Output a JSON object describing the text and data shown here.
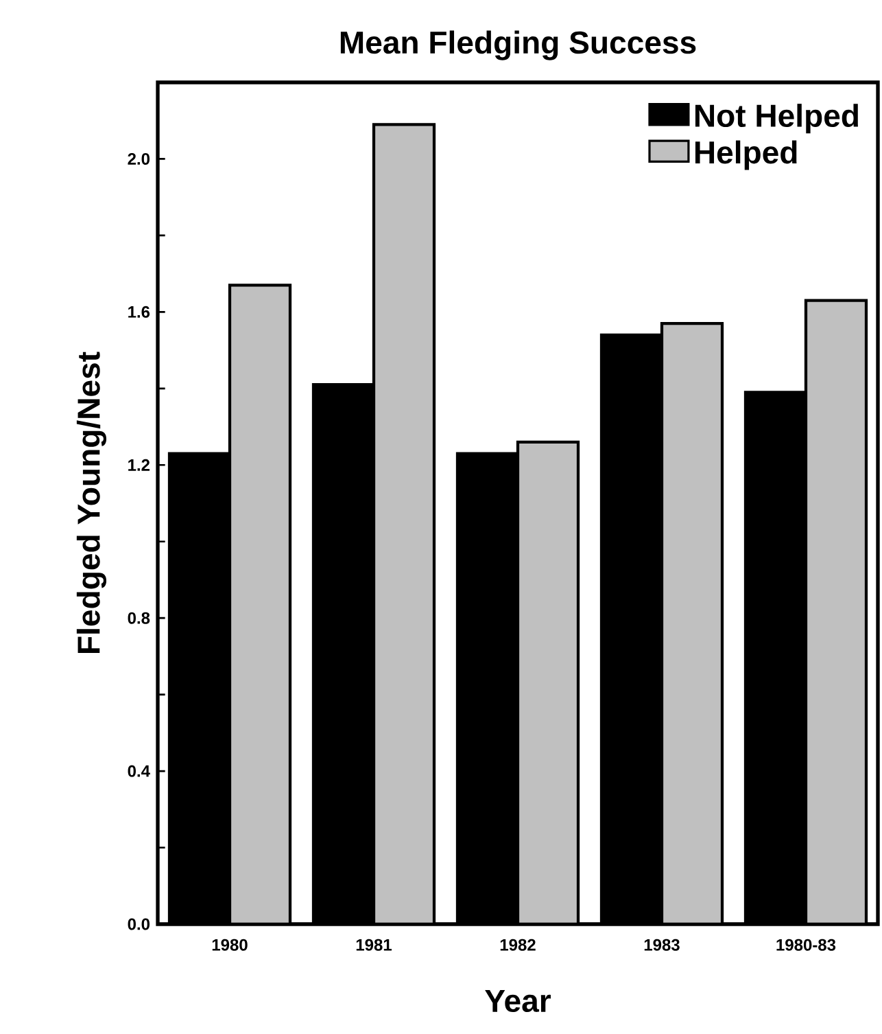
{
  "chart_data": {
    "type": "bar",
    "title": "Mean Fledging Success",
    "xlabel": "Year",
    "ylabel": "Fledged Young/Nest",
    "categories": [
      "1980",
      "1981",
      "1982",
      "1983",
      "1980-83"
    ],
    "series": [
      {
        "name": "Not Helped",
        "color": "#000000",
        "values": [
          1.23,
          1.41,
          1.23,
          1.54,
          1.39
        ]
      },
      {
        "name": "Helped",
        "color": "#c0c0c0",
        "values": [
          1.67,
          2.09,
          1.26,
          1.57,
          1.63
        ]
      }
    ],
    "ylim": [
      0,
      2.2
    ],
    "yticks": [
      {
        "value": 0,
        "label": "0.0"
      },
      {
        "value": 0.2,
        "label": null
      },
      {
        "value": 0.4,
        "label": "0.4"
      },
      {
        "value": 0.6,
        "label": null
      },
      {
        "value": 0.8,
        "label": "0.8"
      },
      {
        "value": 1.0,
        "label": null
      },
      {
        "value": 1.2,
        "label": "1.2"
      },
      {
        "value": 1.4,
        "label": null
      },
      {
        "value": 1.6,
        "label": "1.6"
      },
      {
        "value": 1.8,
        "label": null
      },
      {
        "value": 2.0,
        "label": "2.0"
      }
    ],
    "legend": "top right",
    "grid": false
  }
}
